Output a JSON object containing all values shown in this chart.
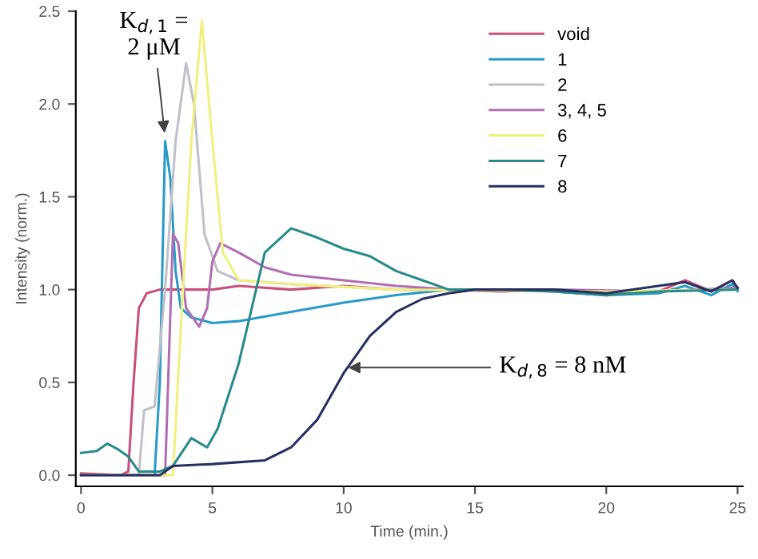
{
  "chart_data": {
    "type": "line",
    "xlabel": "Time (min.)",
    "ylabel": "Intensity (norm.)",
    "xlim": [
      -0.2,
      25.2
    ],
    "ylim": [
      -0.06,
      2.5
    ],
    "xticks": [
      0,
      5,
      10,
      15,
      20,
      25
    ],
    "yticks": [
      {
        "value": 0,
        "label": "0.0"
      },
      {
        "value": 0.5,
        "label": "0.5"
      },
      {
        "value": 1,
        "label": "1.0"
      },
      {
        "value": 1.5,
        "label": "1.5"
      },
      {
        "value": 2,
        "label": "2.0"
      },
      {
        "value": 2.5,
        "label": "2.5"
      }
    ],
    "grid": false,
    "legend": "top right",
    "marker": "none",
    "line_style": "solid",
    "annotations": [
      {
        "text": "K$_{d,1}$ =\n2 μM",
        "x": 3.2,
        "y": 1.82
      },
      {
        "text": "K$_{d,8}$ = 8 nM",
        "x": 10.0,
        "y": 0.58
      }
    ],
    "series": [
      {
        "name": "void",
        "color": "#c8507a",
        "x": [
          0,
          1.5,
          1.8,
          2.0,
          2.2,
          2.5,
          3,
          4,
          5,
          6,
          8,
          10,
          12,
          14,
          16,
          18,
          20,
          22,
          23,
          24,
          24.8,
          25
        ],
        "values": [
          0.01,
          0,
          0.02,
          0.5,
          0.9,
          0.98,
          1.0,
          1.0,
          1.0,
          1.02,
          1.0,
          1.02,
          1.0,
          1.0,
          0.99,
          1.0,
          0.98,
          0.99,
          1.05,
          0.99,
          1.05,
          1.0
        ]
      },
      {
        "name": "1",
        "color": "#2a9ac8",
        "x": [
          0,
          2.8,
          3.0,
          3.2,
          3.4,
          3.6,
          3.8,
          4.2,
          5,
          6,
          8,
          10,
          12,
          14,
          16,
          18,
          20,
          22,
          23,
          24,
          24.8,
          25
        ],
        "values": [
          0,
          0,
          0.5,
          1.8,
          1.6,
          1.1,
          0.9,
          0.85,
          0.82,
          0.83,
          0.88,
          0.93,
          0.97,
          1.0,
          1.0,
          0.99,
          0.97,
          0.98,
          1.02,
          0.97,
          1.03,
          0.99
        ]
      },
      {
        "name": "2",
        "color": "#c0c0c8",
        "x": [
          0,
          2.2,
          2.4,
          2.8,
          3.2,
          3.6,
          4.0,
          4.3,
          4.7,
          5.2,
          6,
          8,
          12,
          16,
          20,
          25
        ],
        "values": [
          0,
          0,
          0.35,
          0.37,
          1.0,
          1.8,
          2.22,
          2.0,
          1.3,
          1.1,
          1.05,
          1.03,
          1.0,
          1.0,
          0.99,
          1.0
        ]
      },
      {
        "name": "3, 4, 5",
        "color": "#b070b0",
        "x": [
          0,
          3.2,
          3.5,
          3.7,
          4.0,
          4.5,
          4.8,
          5.0,
          5.3,
          6,
          7,
          8,
          10,
          12,
          14,
          18,
          22,
          25
        ],
        "values": [
          0,
          0,
          1.3,
          1.25,
          0.9,
          0.8,
          0.9,
          1.15,
          1.25,
          1.2,
          1.12,
          1.08,
          1.05,
          1.02,
          1.0,
          1.0,
          0.99,
          1.01
        ]
      },
      {
        "name": "6",
        "color": "#f0f080",
        "x": [
          0,
          3.5,
          3.8,
          4.2,
          4.6,
          5.0,
          5.4,
          6,
          8,
          12,
          20,
          25
        ],
        "values": [
          0,
          0,
          0.8,
          1.8,
          2.45,
          1.8,
          1.2,
          1.05,
          1.03,
          1.0,
          0.99,
          1.0
        ]
      },
      {
        "name": "7",
        "color": "#2a8a8a",
        "x": [
          0,
          0.6,
          1,
          1.4,
          1.8,
          2.2,
          3,
          3.5,
          4.2,
          4.8,
          5.2,
          6,
          6.5,
          7,
          8,
          9,
          10,
          11,
          12,
          13,
          14,
          16,
          18,
          20,
          22,
          25
        ],
        "values": [
          0.12,
          0.13,
          0.17,
          0.14,
          0.1,
          0.02,
          0.02,
          0.05,
          0.2,
          0.15,
          0.25,
          0.6,
          0.9,
          1.2,
          1.33,
          1.28,
          1.22,
          1.18,
          1.1,
          1.05,
          1.0,
          1.0,
          0.99,
          0.97,
          0.99,
          1.0
        ]
      },
      {
        "name": "8",
        "color": "#283060",
        "x": [
          0,
          3,
          3.5,
          5,
          7,
          8,
          9,
          10,
          11,
          12,
          13,
          14,
          15,
          18,
          20,
          23,
          24,
          24.8,
          25
        ],
        "values": [
          0,
          0,
          0.05,
          0.06,
          0.08,
          0.15,
          0.3,
          0.55,
          0.75,
          0.88,
          0.95,
          0.98,
          1.0,
          1.0,
          0.98,
          1.04,
          0.99,
          1.05,
          1.01
        ]
      }
    ]
  }
}
